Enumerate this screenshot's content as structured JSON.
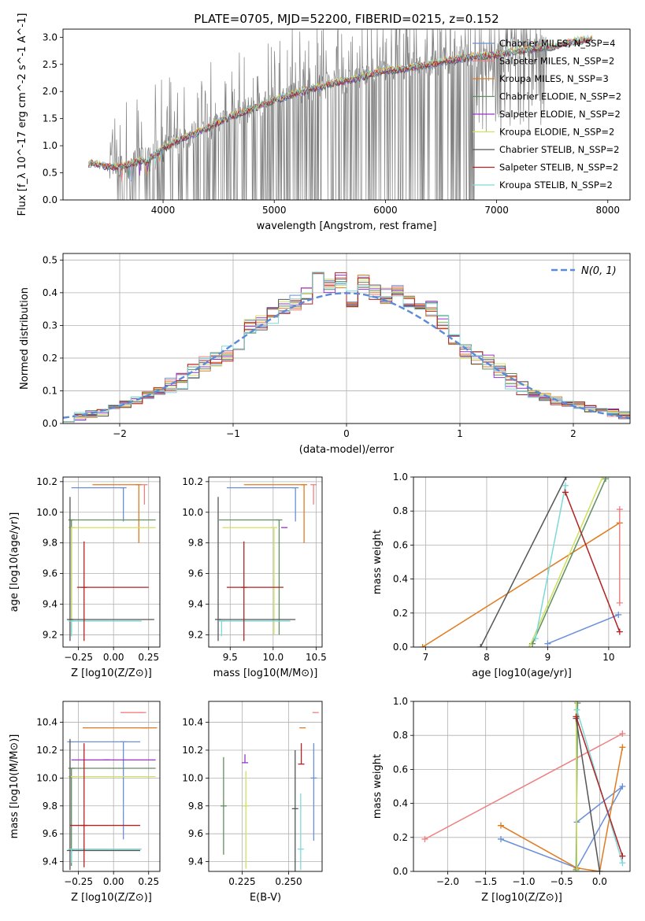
{
  "figure": {
    "title": "PLATE=0705, MJD=52200, FIBERID=0215, z=0.152"
  },
  "chart_data": [
    {
      "id": "spectrum",
      "type": "line",
      "title": "PLATE=0705, MJD=52200, FIBERID=0215, z=0.152",
      "xlabel": "wavelength [Angstrom, rest frame]",
      "ylabel": "Flux [f_λ 10^-17 erg cm^-2 s^-1 A^-1]",
      "xlim": [
        3100,
        8200
      ],
      "ylim": [
        0,
        3.15
      ],
      "xticks": [
        4000,
        5000,
        6000,
        7000,
        8000
      ],
      "yticks": [
        0.0,
        0.5,
        1.0,
        1.5,
        2.0,
        2.5,
        3.0
      ],
      "grid": false,
      "legend_position": "top-right",
      "data_color": "#808080",
      "continuum": [
        [
          3330,
          0.68
        ],
        [
          3420,
          0.66
        ],
        [
          3500,
          0.62
        ],
        [
          3600,
          0.6
        ],
        [
          3700,
          0.66
        ],
        [
          3800,
          0.72
        ],
        [
          3850,
          0.7
        ],
        [
          3900,
          0.8
        ],
        [
          3950,
          0.86
        ],
        [
          4000,
          0.95
        ],
        [
          4100,
          1.06
        ],
        [
          4200,
          1.16
        ],
        [
          4300,
          1.24
        ],
        [
          4400,
          1.33
        ],
        [
          4500,
          1.43
        ],
        [
          4600,
          1.53
        ],
        [
          4700,
          1.6
        ],
        [
          4800,
          1.68
        ],
        [
          4900,
          1.76
        ],
        [
          5000,
          1.84
        ],
        [
          5100,
          1.9
        ],
        [
          5200,
          1.97
        ],
        [
          5300,
          2.02
        ],
        [
          5400,
          2.08
        ],
        [
          5500,
          2.14
        ],
        [
          5600,
          2.18
        ],
        [
          5700,
          2.22
        ],
        [
          5800,
          2.28
        ],
        [
          5900,
          2.34
        ],
        [
          6000,
          2.38
        ],
        [
          6100,
          2.4
        ],
        [
          6200,
          2.43
        ],
        [
          6300,
          2.47
        ],
        [
          6400,
          2.5
        ],
        [
          6500,
          2.55
        ],
        [
          6600,
          2.58
        ],
        [
          6700,
          2.62
        ],
        [
          6800,
          2.64
        ],
        [
          6900,
          2.66
        ],
        [
          7000,
          2.68
        ],
        [
          7100,
          2.72
        ],
        [
          7200,
          2.74
        ],
        [
          7300,
          2.78
        ],
        [
          7400,
          2.8
        ],
        [
          7500,
          2.82
        ],
        [
          7600,
          2.88
        ],
        [
          7700,
          2.93
        ],
        [
          7800,
          2.95
        ],
        [
          7860,
          2.97
        ]
      ],
      "series": [
        {
          "name": "Chabrier MILES, N_SSP=4",
          "color": "#6b8fd8"
        },
        {
          "name": "Salpeter MILES, N_SSP=2",
          "color": "#f08080"
        },
        {
          "name": "Kroupa MILES, N_SSP=3",
          "color": "#e07b20"
        },
        {
          "name": "Chabrier ELODIE, N_SSP=2",
          "color": "#5f8f5f"
        },
        {
          "name": "Salpeter ELODIE, N_SSP=2",
          "color": "#9932cc"
        },
        {
          "name": "Kroupa ELODIE, N_SSP=2",
          "color": "#d0e060"
        },
        {
          "name": "Chabrier STELIB, N_SSP=2",
          "color": "#555555"
        },
        {
          "name": "Salpeter STELIB, N_SSP=2",
          "color": "#b22222"
        },
        {
          "name": "Kroupa STELIB, N_SSP=2",
          "color": "#7fd8d8"
        }
      ]
    },
    {
      "id": "residuals",
      "type": "line",
      "xlabel": "(data-model)/error",
      "ylabel": "Normed distribution",
      "xlim": [
        -2.5,
        2.5
      ],
      "ylim": [
        0,
        0.52
      ],
      "xticks": [
        -2,
        -1,
        0,
        1,
        2
      ],
      "yticks": [
        0.0,
        0.1,
        0.2,
        0.3,
        0.4,
        0.5
      ],
      "grid": true,
      "legend_position": "top-right",
      "normal_label": "N(0, 1)",
      "normal_color": "#5b8bd8",
      "bin_edges": [
        -2.5,
        -2.4,
        -2.3,
        -2.2,
        -2.1,
        -2.0,
        -1.9,
        -1.8,
        -1.7,
        -1.6,
        -1.5,
        -1.4,
        -1.3,
        -1.2,
        -1.1,
        -1.0,
        -0.9,
        -0.8,
        -0.7,
        -0.6,
        -0.5,
        -0.4,
        -0.3,
        -0.2,
        -0.1,
        0.0,
        0.1,
        0.2,
        0.3,
        0.4,
        0.5,
        0.6,
        0.7,
        0.8,
        0.9,
        1.0,
        1.1,
        1.2,
        1.3,
        1.4,
        1.5,
        1.6,
        1.7,
        1.8,
        1.9,
        2.0,
        2.1,
        2.2,
        2.3,
        2.4,
        2.5
      ],
      "hist_base": [
        0.018,
        0.022,
        0.028,
        0.035,
        0.045,
        0.058,
        0.072,
        0.088,
        0.1,
        0.115,
        0.13,
        0.16,
        0.185,
        0.2,
        0.215,
        0.23,
        0.3,
        0.31,
        0.33,
        0.36,
        0.37,
        0.39,
        0.47,
        0.42,
        0.44,
        0.38,
        0.43,
        0.4,
        0.39,
        0.41,
        0.38,
        0.36,
        0.35,
        0.31,
        0.25,
        0.22,
        0.2,
        0.19,
        0.16,
        0.13,
        0.11,
        0.09,
        0.08,
        0.07,
        0.06,
        0.055,
        0.048,
        0.04,
        0.032,
        0.026
      ]
    },
    {
      "id": "age-vs-Z",
      "type": "scatter",
      "xlabel": "Z [log10(Z/Z⊙)]",
      "ylabel": "age  [log10(age/yr)]",
      "xlim": [
        -0.36,
        0.33
      ],
      "ylim": [
        9.12,
        10.23
      ],
      "xticks": [
        -0.25,
        0.0,
        0.25
      ],
      "yticks": [
        9.2,
        9.4,
        9.6,
        9.8,
        10.0,
        10.2
      ],
      "grid": true,
      "crosses": [
        {
          "color": "#6b8fd8",
          "x": 0.07,
          "xerr": [
            0.37,
            0.0
          ],
          "y": 10.16,
          "yerr": [
            0.22,
            0.0
          ]
        },
        {
          "color": "#e07b20",
          "x": 0.18,
          "xerr": [
            0.33,
            0.02
          ],
          "y": 10.18,
          "yerr": [
            0.38,
            0.0
          ]
        },
        {
          "color": "#f08080",
          "x": 0.22,
          "xerr": [
            0.0,
            0.0
          ],
          "y": 10.18,
          "yerr": [
            0.13,
            0.0
          ]
        },
        {
          "color": "#5f8f5f",
          "x": -0.3,
          "xerr": [
            0.0,
            0.6
          ],
          "y": 9.95,
          "yerr": [
            0.75,
            0.0
          ]
        },
        {
          "color": "#d0e060",
          "x": -0.3,
          "xerr": [
            0.0,
            0.6
          ],
          "y": 9.9,
          "yerr": [
            0.7,
            0.0
          ]
        },
        {
          "color": "#555555",
          "x": -0.31,
          "xerr": [
            0.0,
            0.6
          ],
          "y": 9.3,
          "yerr": [
            0.14,
            0.8
          ]
        },
        {
          "color": "#7fd8d8",
          "x": -0.3,
          "xerr": [
            0.0,
            0.5
          ],
          "y": 9.29,
          "yerr": [
            0.1,
            0.0
          ]
        },
        {
          "color": "#b22222",
          "x": -0.21,
          "xerr": [
            0.05,
            0.46
          ],
          "y": 9.51,
          "yerr": [
            0.35,
            0.3
          ]
        }
      ]
    },
    {
      "id": "age-vs-mass",
      "type": "scatter",
      "xlabel": "mass [log10(M/M⊙)]",
      "xlim": [
        9.25,
        10.57
      ],
      "ylim": [
        9.12,
        10.23
      ],
      "xticks": [
        9.5,
        10.0,
        10.5
      ],
      "yticks": [
        9.2,
        9.4,
        9.6,
        9.8,
        10.0,
        10.2
      ],
      "grid": true,
      "crosses": [
        {
          "color": "#6b8fd8",
          "x": 10.26,
          "xerr": [
            0.8,
            0.0
          ],
          "y": 10.16,
          "yerr": [
            0.22,
            0.0
          ]
        },
        {
          "color": "#e07b20",
          "x": 10.36,
          "xerr": [
            0.7,
            0.0
          ],
          "y": 10.18,
          "yerr": [
            0.38,
            0.0
          ]
        },
        {
          "color": "#f08080",
          "x": 10.47,
          "xerr": [
            0.0,
            0.0
          ],
          "y": 10.18,
          "yerr": [
            0.13,
            0.0
          ]
        },
        {
          "color": "#5f8f5f",
          "x": 10.07,
          "xerr": [
            0.7,
            0.0
          ],
          "y": 9.95,
          "yerr": [
            0.75,
            0.0
          ]
        },
        {
          "color": "#9932cc",
          "x": 10.13,
          "xerr": [
            0.0,
            0.0
          ],
          "y": 9.9,
          "yerr": [
            0.0,
            0.0
          ]
        },
        {
          "color": "#d0e060",
          "x": 10.01,
          "xerr": [
            0.6,
            0.0
          ],
          "y": 9.9,
          "yerr": [
            0.7,
            0.0
          ]
        },
        {
          "color": "#555555",
          "x": 9.36,
          "xerr": [
            0.0,
            0.9
          ],
          "y": 9.3,
          "yerr": [
            0.14,
            0.8
          ]
        },
        {
          "color": "#7fd8d8",
          "x": 9.4,
          "xerr": [
            0.0,
            0.8
          ],
          "y": 9.29,
          "yerr": [
            0.1,
            0.0
          ]
        },
        {
          "color": "#b22222",
          "x": 9.66,
          "xerr": [
            0.2,
            0.46
          ],
          "y": 9.51,
          "yerr": [
            0.35,
            0.3
          ]
        }
      ]
    },
    {
      "id": "weight-vs-age",
      "type": "line",
      "xlabel": "age  [log10(age/yr)]",
      "ylabel": "mass weight",
      "xlim": [
        6.8,
        10.35
      ],
      "ylim": [
        0,
        1
      ],
      "xticks": [
        7,
        8,
        9,
        10
      ],
      "yticks": [
        0.0,
        0.2,
        0.4,
        0.6,
        0.8,
        1.0
      ],
      "grid": true,
      "series": [
        {
          "color": "#6b8fd8",
          "x": [
            9.0,
            10.16
          ],
          "y": [
            0.02,
            0.19
          ]
        },
        {
          "color": "#e07b20",
          "x": [
            6.95,
            10.18
          ],
          "y": [
            0.0,
            0.73
          ]
        },
        {
          "color": "#f08080",
          "x": [
            10.18,
            10.18
          ],
          "y": [
            0.26,
            0.81
          ]
        },
        {
          "color": "#5f8f5f",
          "x": [
            8.75,
            9.95
          ],
          "y": [
            0.02,
            0.99
          ]
        },
        {
          "color": "#d0e060",
          "x": [
            8.7,
            9.9
          ],
          "y": [
            0.0,
            1.0
          ]
        },
        {
          "color": "#555555",
          "x": [
            7.9,
            9.3
          ],
          "y": [
            0.0,
            1.0
          ]
        },
        {
          "color": "#7fd8d8",
          "x": [
            8.8,
            9.29
          ],
          "y": [
            0.05,
            0.95
          ]
        },
        {
          "color": "#b22222",
          "x": [
            9.29,
            10.18
          ],
          "y": [
            0.91,
            0.09
          ]
        }
      ]
    },
    {
      "id": "mass-vs-Z",
      "type": "scatter",
      "xlabel": "Z [log10(Z/Z⊙)]",
      "ylabel": "mass [log10(M/M⊙)]",
      "xlim": [
        -0.36,
        0.33
      ],
      "ylim": [
        9.33,
        10.55
      ],
      "xticks": [
        -0.25,
        0.0,
        0.25
      ],
      "yticks": [
        9.4,
        9.6,
        9.8,
        10.0,
        10.2,
        10.4
      ],
      "grid": true,
      "crosses": [
        {
          "color": "#f08080",
          "x": 0.21,
          "xerr": [
            0.16,
            0.0
          ],
          "y": 10.47,
          "yerr": [
            0.0,
            0.0
          ]
        },
        {
          "color": "#e07b20",
          "x": 0.22,
          "xerr": [
            0.44,
            0.09
          ],
          "y": 10.36,
          "yerr": [
            0.0,
            0.0
          ]
        },
        {
          "color": "#6b8fd8",
          "x": 0.07,
          "xerr": [
            0.4,
            0.12
          ],
          "y": 10.26,
          "yerr": [
            0.7,
            0.0
          ]
        },
        {
          "color": "#9932cc",
          "x": -0.05,
          "xerr": [
            0.25,
            0.35
          ],
          "y": 10.13,
          "yerr": [
            0.0,
            0.0
          ]
        },
        {
          "color": "#5f8f5f",
          "x": -0.3,
          "xerr": [
            0.0,
            0.6
          ],
          "y": 10.07,
          "yerr": [
            0.7,
            0.0
          ]
        },
        {
          "color": "#d0e060",
          "x": -0.3,
          "xerr": [
            0.0,
            0.6
          ],
          "y": 10.01,
          "yerr": [
            0.0,
            0.0
          ]
        },
        {
          "color": "#555555",
          "x": -0.31,
          "xerr": [
            0.0,
            0.5
          ],
          "y": 9.48,
          "yerr": [
            0.14,
            0.8
          ]
        },
        {
          "color": "#7fd8d8",
          "x": -0.3,
          "xerr": [
            0.0,
            0.5
          ],
          "y": 9.49,
          "yerr": [
            0.1,
            0.0
          ]
        },
        {
          "color": "#b22222",
          "x": -0.21,
          "xerr": [
            0.1,
            0.4
          ],
          "y": 9.66,
          "yerr": [
            0.3,
            0.59
          ]
        }
      ]
    },
    {
      "id": "mass-vs-EBV",
      "type": "scatter",
      "xlabel": "E(B-V)",
      "xlim": [
        0.207,
        0.268
      ],
      "ylim": [
        9.33,
        10.55
      ],
      "xticks": [
        0.225,
        0.25
      ],
      "yticks": [
        9.4,
        9.6,
        9.8,
        10.0,
        10.2,
        10.4
      ],
      "grid": true,
      "crosses": [
        {
          "color": "#5f8f5f",
          "x": 0.215,
          "y": 9.8,
          "yerr": [
            0.35,
            0.35
          ]
        },
        {
          "color": "#9932cc",
          "x": 0.2265,
          "y": 10.11,
          "yerr": [
            0.0,
            0.06
          ]
        },
        {
          "color": "#d0e060",
          "x": 0.227,
          "y": 9.8,
          "yerr": [
            0.45,
            0.25
          ]
        },
        {
          "color": "#555555",
          "x": 0.2535,
          "y": 9.78,
          "yerr": [
            0.45,
            0.42
          ]
        },
        {
          "color": "#7fd8d8",
          "x": 0.2565,
          "y": 9.49,
          "yerr": [
            0.15,
            0.4
          ]
        },
        {
          "color": "#b22222",
          "x": 0.2568,
          "y": 10.1,
          "yerr": [
            0.0,
            0.15
          ]
        },
        {
          "color": "#e07b20",
          "x": 0.2575,
          "y": 10.36,
          "yerr": [
            0.0,
            0.0
          ]
        },
        {
          "color": "#6b8fd8",
          "x": 0.2635,
          "y": 10.0,
          "yerr": [
            0.45,
            0.25
          ]
        },
        {
          "color": "#f08080",
          "x": 0.2645,
          "y": 10.47,
          "yerr": [
            0.0,
            0.0
          ]
        }
      ]
    },
    {
      "id": "weight-vs-Z",
      "type": "line",
      "xlabel": "Z [log10(Z/Z⊙)]",
      "ylabel": "mass weight",
      "xlim": [
        -2.45,
        0.4
      ],
      "ylim": [
        0,
        1
      ],
      "xticks": [
        -2.0,
        -1.5,
        -1.0,
        -0.5,
        0.0
      ],
      "yticks": [
        0.0,
        0.2,
        0.4,
        0.6,
        0.8,
        1.0
      ],
      "grid": true,
      "series": [
        {
          "color": "#6b8fd8",
          "x": [
            -1.3,
            -0.3,
            0.3,
            -0.3
          ],
          "y": [
            0.19,
            0.02,
            0.5,
            0.29
          ]
        },
        {
          "color": "#e07b20",
          "x": [
            -1.3,
            -0.3,
            0.0,
            0.3
          ],
          "y": [
            0.27,
            0.02,
            0.0,
            0.73
          ]
        },
        {
          "color": "#f08080",
          "x": [
            -2.3,
            0.3
          ],
          "y": [
            0.19,
            0.81
          ]
        },
        {
          "color": "#5f8f5f",
          "x": [
            -0.31,
            -0.29
          ],
          "y": [
            0.01,
            0.99
          ]
        },
        {
          "color": "#d0e060",
          "x": [
            -0.3,
            -0.31
          ],
          "y": [
            0.0,
            1.0
          ]
        },
        {
          "color": "#555555",
          "x": [
            -0.31,
            0.0
          ],
          "y": [
            0.9,
            0.0
          ]
        },
        {
          "color": "#7fd8d8",
          "x": [
            -0.3,
            0.3
          ],
          "y": [
            0.95,
            0.05
          ]
        },
        {
          "color": "#b22222",
          "x": [
            -0.31,
            0.3
          ],
          "y": [
            0.91,
            0.09
          ]
        }
      ]
    }
  ]
}
